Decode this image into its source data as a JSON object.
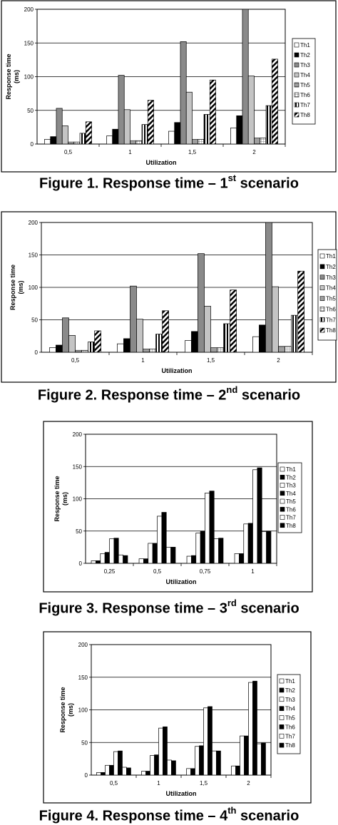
{
  "figures": [
    {
      "caption_main": "Figure 1. Response time – 1",
      "caption_sup": "st",
      "caption_end": " scenario"
    },
    {
      "caption_main": "Figure 2. Response time – 2",
      "caption_sup": "nd",
      "caption_end": " scenario"
    },
    {
      "caption_main": "Figure 3. Response time – 3",
      "caption_sup": "rd",
      "caption_end": " scenario"
    },
    {
      "caption_main": "Figure 4. Response time – 4",
      "caption_sup": "th",
      "caption_end": " scenario"
    }
  ],
  "chart_data": [
    {
      "type": "bar",
      "title": "",
      "xlabel": "Utilization",
      "ylabel": "Response time (ms)",
      "ylim": [
        0,
        200
      ],
      "yticks": [
        0,
        50,
        100,
        150,
        200
      ],
      "grid": true,
      "legend_position": "right",
      "categories": [
        "0,5",
        "1",
        "1,5",
        "2"
      ],
      "series": [
        {
          "name": "Th1",
          "values": [
            7,
            12,
            19,
            24
          ]
        },
        {
          "name": "Th2",
          "values": [
            11,
            22,
            32,
            42
          ]
        },
        {
          "name": "Th3",
          "values": [
            53,
            102,
            152,
            200
          ]
        },
        {
          "name": "Th4",
          "values": [
            27,
            51,
            77,
            101
          ]
        },
        {
          "name": "Th5",
          "values": [
            3,
            5,
            7,
            9
          ]
        },
        {
          "name": "Th6",
          "values": [
            3,
            5,
            7,
            9
          ]
        },
        {
          "name": "Th7",
          "values": [
            16,
            29,
            44,
            57
          ]
        },
        {
          "name": "Th8",
          "values": [
            33,
            65,
            95,
            126
          ]
        }
      ]
    },
    {
      "type": "bar",
      "title": "",
      "xlabel": "Utilization",
      "ylabel": "Response time (ms)",
      "ylim": [
        0,
        200
      ],
      "yticks": [
        0,
        50,
        100,
        150,
        200
      ],
      "grid": true,
      "legend_position": "right",
      "categories": [
        "0,5",
        "1",
        "1,5",
        "2"
      ],
      "series": [
        {
          "name": "Th1",
          "values": [
            7,
            13,
            18,
            24
          ]
        },
        {
          "name": "Th2",
          "values": [
            11,
            21,
            32,
            42
          ]
        },
        {
          "name": "Th3",
          "values": [
            53,
            102,
            152,
            200
          ]
        },
        {
          "name": "Th4",
          "values": [
            26,
            51,
            71,
            101
          ]
        },
        {
          "name": "Th5",
          "values": [
            3,
            5,
            7,
            9
          ]
        },
        {
          "name": "Th6",
          "values": [
            3,
            5,
            7,
            9
          ]
        },
        {
          "name": "Th7",
          "values": [
            16,
            28,
            44,
            57
          ]
        },
        {
          "name": "Th8",
          "values": [
            33,
            64,
            96,
            125
          ]
        }
      ]
    },
    {
      "type": "bar",
      "title": "",
      "xlabel": "Utilization",
      "ylabel": "Response time (ms)",
      "ylim": [
        0,
        200
      ],
      "yticks": [
        0,
        50,
        100,
        150,
        200
      ],
      "grid": true,
      "legend_position": "right",
      "categories": [
        "0,25",
        "0,5",
        "0,75",
        "1"
      ],
      "series": [
        {
          "name": "Th1",
          "values": [
            4,
            7,
            11,
            15
          ]
        },
        {
          "name": "Th2",
          "values": [
            4,
            7,
            12,
            15
          ]
        },
        {
          "name": "Th3",
          "values": [
            15,
            31,
            47,
            61
          ]
        },
        {
          "name": "Th4",
          "values": [
            17,
            31,
            50,
            62
          ]
        },
        {
          "name": "Th5",
          "values": [
            38,
            73,
            109,
            145
          ]
        },
        {
          "name": "Th6",
          "values": [
            39,
            79,
            112,
            148
          ]
        },
        {
          "name": "Th7",
          "values": [
            13,
            25,
            38,
            49
          ]
        },
        {
          "name": "Th8",
          "values": [
            12,
            25,
            39,
            50
          ]
        }
      ]
    },
    {
      "type": "bar",
      "title": "",
      "xlabel": "Utilization",
      "ylabel": "Response time (ms)",
      "ylim": [
        0,
        200
      ],
      "yticks": [
        0,
        50,
        100,
        150,
        200
      ],
      "grid": true,
      "legend_position": "right",
      "categories": [
        "0,5",
        "1",
        "1,5",
        "2"
      ],
      "series": [
        {
          "name": "Th1",
          "values": [
            4,
            6,
            10,
            14
          ]
        },
        {
          "name": "Th2",
          "values": [
            4,
            6,
            10,
            14
          ]
        },
        {
          "name": "Th3",
          "values": [
            15,
            30,
            44,
            60
          ]
        },
        {
          "name": "Th4",
          "values": [
            15,
            31,
            45,
            60
          ]
        },
        {
          "name": "Th5",
          "values": [
            36,
            72,
            103,
            142
          ]
        },
        {
          "name": "Th6",
          "values": [
            37,
            74,
            105,
            144
          ]
        },
        {
          "name": "Th7",
          "values": [
            12,
            23,
            37,
            48
          ]
        },
        {
          "name": "Th8",
          "values": [
            11,
            22,
            37,
            49
          ]
        }
      ]
    }
  ]
}
